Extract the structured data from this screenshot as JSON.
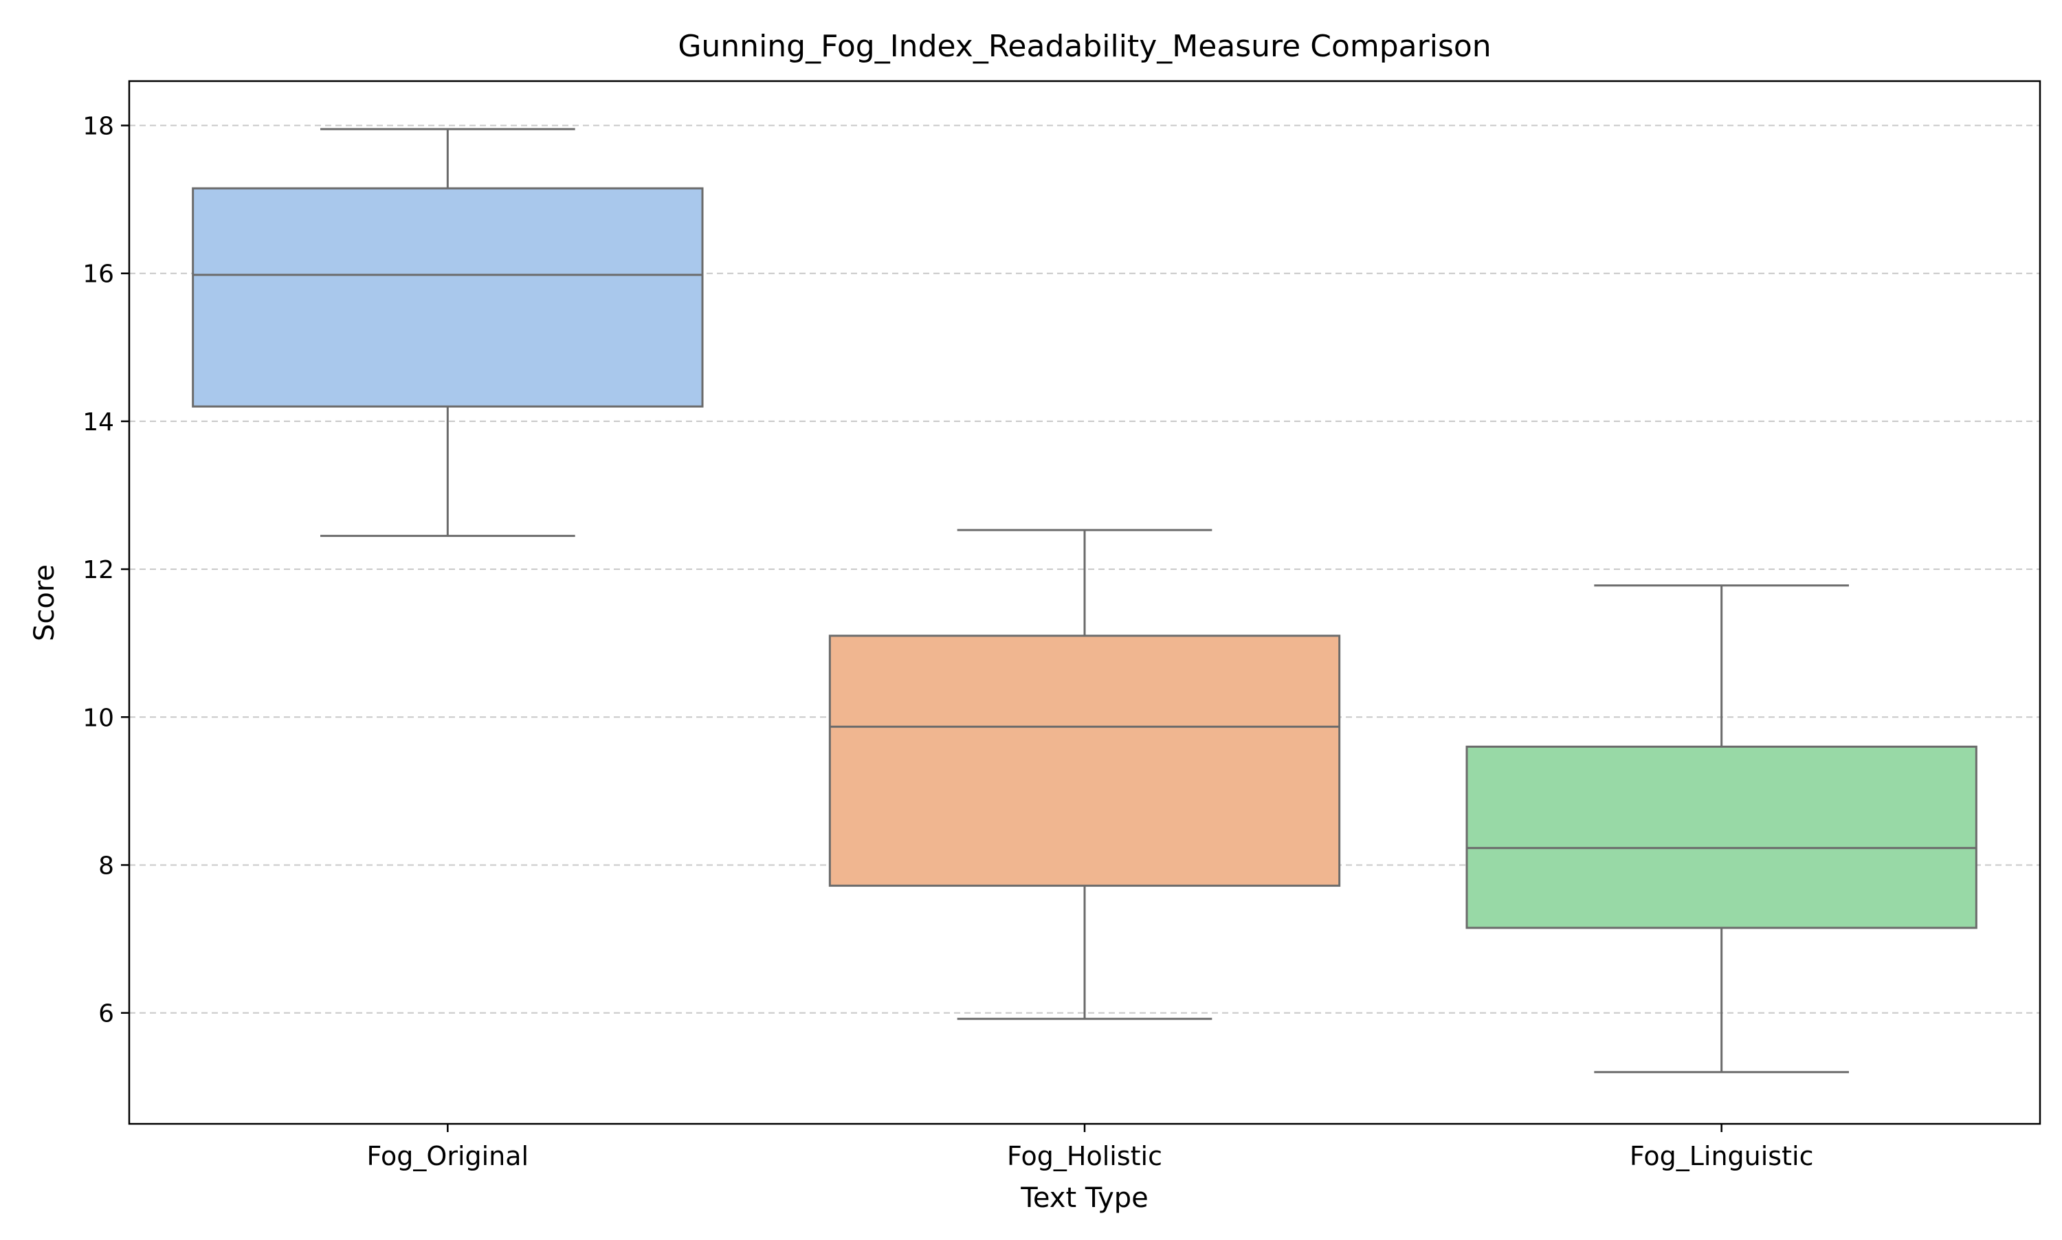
{
  "chart_data": {
    "type": "box",
    "title": "Gunning_Fog_Index_Readability_Measure Comparison",
    "xlabel": "Text Type",
    "ylabel": "Score",
    "ylim": [
      4.5,
      18.6
    ],
    "yticks": [
      6,
      8,
      10,
      12,
      14,
      16,
      18
    ],
    "grid": "y-dashed",
    "categories": [
      "Fog_Original",
      "Fog_Holistic",
      "Fog_Linguistic"
    ],
    "boxes": [
      {
        "category": "Fog_Original",
        "whisker_low": 12.45,
        "q1": 14.2,
        "median": 15.98,
        "q3": 17.15,
        "whisker_high": 17.95,
        "color": "#a9c8ec"
      },
      {
        "category": "Fog_Holistic",
        "whisker_low": 5.92,
        "q1": 7.72,
        "median": 9.87,
        "q3": 11.1,
        "whisker_high": 12.53,
        "color": "#f0b690"
      },
      {
        "category": "Fog_Linguistic",
        "whisker_low": 5.2,
        "q1": 7.15,
        "median": 8.23,
        "q3": 9.6,
        "whisker_high": 11.78,
        "color": "#98d9a6"
      }
    ],
    "colors": {
      "edge": "#6b6b6b",
      "grid": "#c8c8c8",
      "axis": "#000000"
    }
  }
}
